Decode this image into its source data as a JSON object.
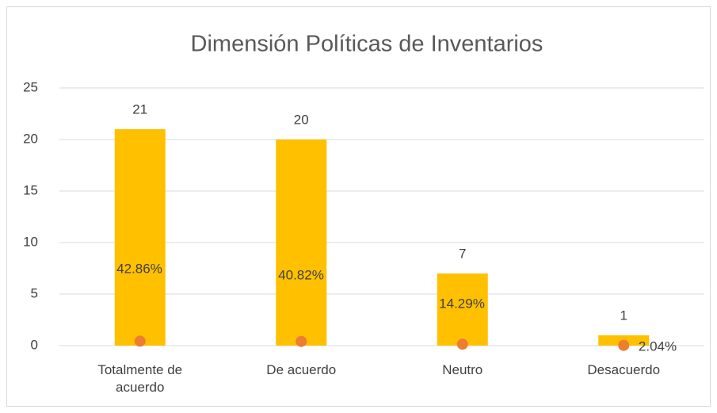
{
  "chart_data": {
    "type": "bar",
    "title": "Dimensión Políticas de Inventarios",
    "categories": [
      "Totalmente de acuerdo",
      "De acuerdo",
      "Neutro",
      "Desacuerdo"
    ],
    "series": [
      {
        "color": "#FFC000",
        "values": [
          21,
          20,
          7,
          1
        ]
      },
      {
        "color": "#ED7D31",
        "values": [
          0.4286,
          0.4082,
          0.1429,
          0.0204
        ],
        "value_labels": [
          "42.86%",
          "40.82%",
          "14.29%",
          "2.04%"
        ]
      }
    ],
    "ylim": [
      0,
      25
    ],
    "yticks": [
      0,
      5,
      10,
      15,
      20,
      25
    ],
    "grid": true
  }
}
